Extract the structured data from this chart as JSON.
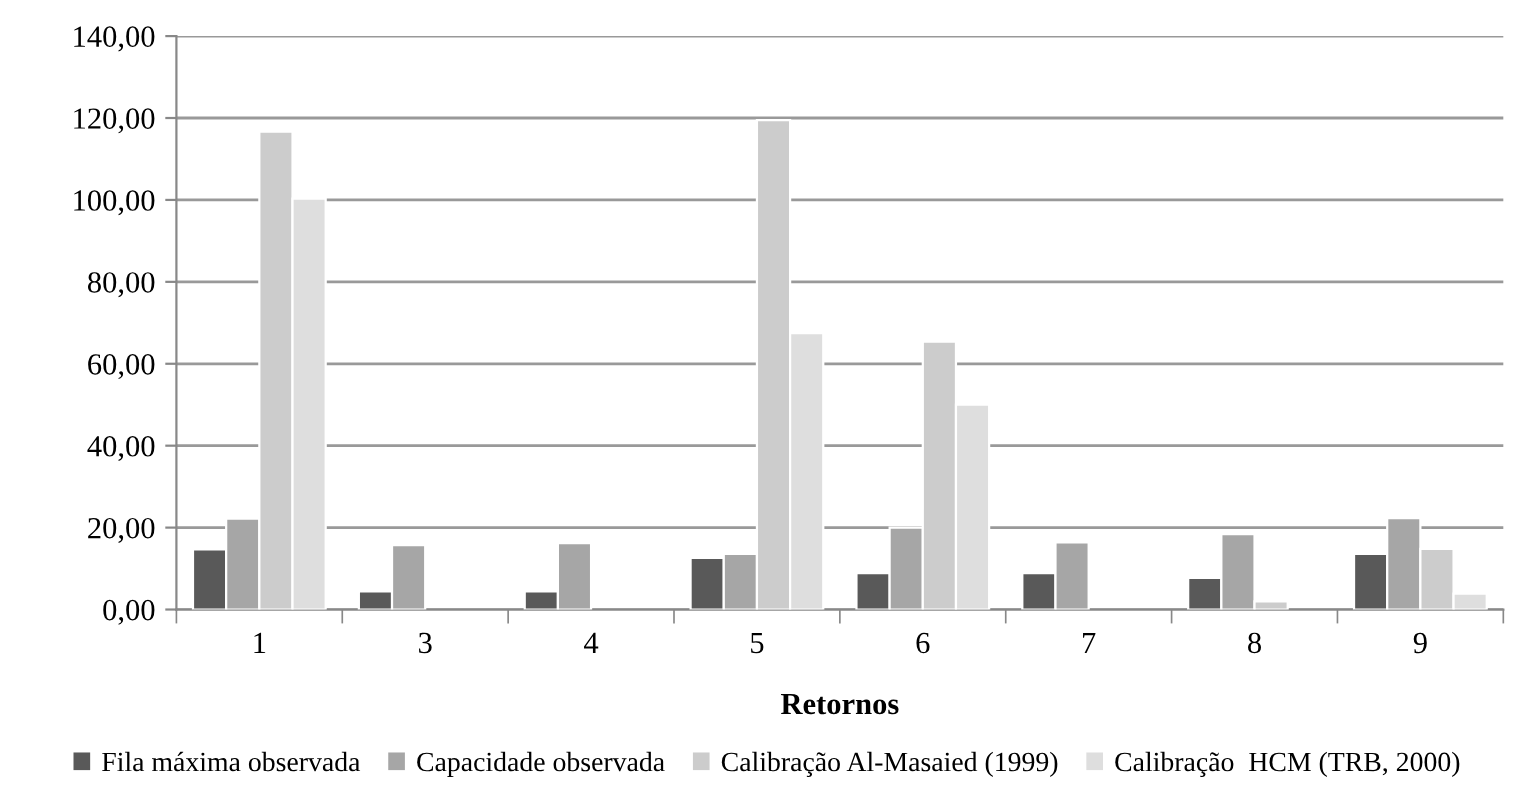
{
  "chart_data": {
    "type": "bar",
    "xlabel": "Retornos",
    "categories": [
      "1",
      "3",
      "4",
      "5",
      "6",
      "7",
      "8",
      "9"
    ],
    "series": [
      {
        "name": "Fila máxima observada",
        "color": "#595959",
        "values": [
          14.7,
          4.4,
          4.4,
          12.6,
          8.9,
          8.9,
          7.7,
          13.6
        ]
      },
      {
        "name": "Capacidade observada",
        "color": "#a6a6a6",
        "values": [
          22.2,
          15.7,
          16.2,
          13.6,
          20.0,
          16.4,
          18.4,
          22.3
        ]
      },
      {
        "name": "Calibração Al-Masaied (1999)",
        "color": "#cccccc",
        "values": [
          116.7,
          null,
          null,
          119.5,
          65.4,
          null,
          2.0,
          14.8
        ]
      },
      {
        "name": "Calibração  HCM (TRB, 2000)",
        "color": "#dedede",
        "values": [
          100.3,
          null,
          null,
          67.5,
          50.0,
          null,
          null,
          3.9
        ]
      }
    ],
    "ylim": [
      0,
      140
    ],
    "yticks": [
      {
        "value": 0,
        "label": "0,00"
      },
      {
        "value": 20,
        "label": "20,00"
      },
      {
        "value": 40,
        "label": "40,00"
      },
      {
        "value": 60,
        "label": "60,00"
      },
      {
        "value": 80,
        "label": "80,00"
      },
      {
        "value": 100,
        "label": "100,00"
      },
      {
        "value": 120,
        "label": "120,00"
      },
      {
        "value": 140,
        "label": "140,00"
      }
    ],
    "grid": "y",
    "legend": "bottom"
  }
}
